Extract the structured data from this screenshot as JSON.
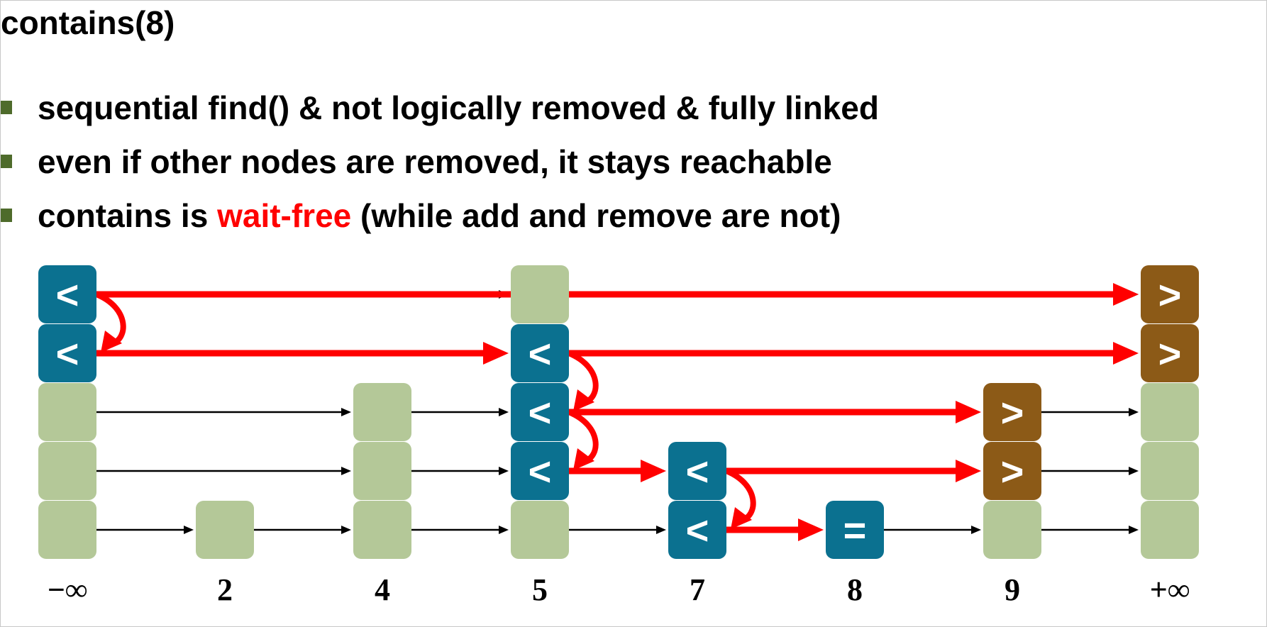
{
  "slide": {
    "title": "contains(8)",
    "bullets": [
      {
        "text": "sequential find() & not logically removed & fully linked"
      },
      {
        "text": "even if other nodes are removed, it stays reachable"
      },
      {
        "prefix": "contains is ",
        "highlight": "wait-free",
        "suffix": " (while add and remove are not)"
      }
    ]
  },
  "colors": {
    "visited_node": "#0b7190",
    "greater_node": "#8c5a17",
    "unvisited_node": "#b4c898",
    "path_arrow": "#ff0000",
    "link_arrow": "#000000",
    "bullet_mark": "#4e6b2b"
  },
  "skiplist": {
    "target": 8,
    "keys": [
      "−∞",
      "2",
      "4",
      "5",
      "7",
      "8",
      "9",
      "+∞"
    ],
    "heights": [
      5,
      1,
      3,
      5,
      2,
      1,
      3,
      5
    ],
    "marks": [
      {
        "col": 0,
        "level": 4,
        "kind": "visited",
        "symbol": "<"
      },
      {
        "col": 0,
        "level": 3,
        "kind": "visited",
        "symbol": "<"
      },
      {
        "col": 3,
        "level": 3,
        "kind": "visited",
        "symbol": "<"
      },
      {
        "col": 3,
        "level": 2,
        "kind": "visited",
        "symbol": "<"
      },
      {
        "col": 3,
        "level": 1,
        "kind": "visited",
        "symbol": "<"
      },
      {
        "col": 4,
        "level": 1,
        "kind": "visited",
        "symbol": "<"
      },
      {
        "col": 4,
        "level": 0,
        "kind": "visited",
        "symbol": "<"
      },
      {
        "col": 5,
        "level": 0,
        "kind": "visited",
        "symbol": "="
      },
      {
        "col": 7,
        "level": 4,
        "kind": "greater",
        "symbol": ">"
      },
      {
        "col": 7,
        "level": 3,
        "kind": "greater",
        "symbol": ">"
      },
      {
        "col": 6,
        "level": 2,
        "kind": "greater",
        "symbol": ">"
      },
      {
        "col": 6,
        "level": 1,
        "kind": "greater",
        "symbol": ">"
      }
    ],
    "path_edges": [
      {
        "from": [
          0,
          4
        ],
        "to": [
          7,
          4
        ],
        "type": "horizontal"
      },
      {
        "from": [
          0,
          4
        ],
        "to": [
          0,
          3
        ],
        "type": "down"
      },
      {
        "from": [
          0,
          3
        ],
        "to": [
          3,
          3
        ],
        "type": "horizontal"
      },
      {
        "from": [
          3,
          3
        ],
        "to": [
          7,
          3
        ],
        "type": "horizontal"
      },
      {
        "from": [
          3,
          3
        ],
        "to": [
          3,
          2
        ],
        "type": "down"
      },
      {
        "from": [
          3,
          2
        ],
        "to": [
          6,
          2
        ],
        "type": "horizontal"
      },
      {
        "from": [
          3,
          2
        ],
        "to": [
          3,
          1
        ],
        "type": "down"
      },
      {
        "from": [
          3,
          1
        ],
        "to": [
          4,
          1
        ],
        "type": "horizontal"
      },
      {
        "from": [
          4,
          1
        ],
        "to": [
          6,
          1
        ],
        "type": "horizontal"
      },
      {
        "from": [
          4,
          1
        ],
        "to": [
          4,
          0
        ],
        "type": "down"
      },
      {
        "from": [
          4,
          0
        ],
        "to": [
          5,
          0
        ],
        "type": "horizontal"
      }
    ]
  }
}
